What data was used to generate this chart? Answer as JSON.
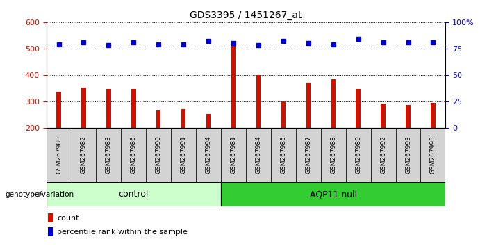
{
  "title": "GDS3395 / 1451267_at",
  "samples": [
    "GSM267980",
    "GSM267982",
    "GSM267983",
    "GSM267986",
    "GSM267990",
    "GSM267991",
    "GSM267994",
    "GSM267981",
    "GSM267984",
    "GSM267985",
    "GSM267987",
    "GSM267988",
    "GSM267989",
    "GSM267992",
    "GSM267993",
    "GSM267995"
  ],
  "counts": [
    338,
    353,
    348,
    348,
    266,
    270,
    252,
    511,
    400,
    300,
    372,
    384,
    348,
    292,
    288,
    295
  ],
  "percentiles": [
    79,
    81,
    78,
    81,
    79,
    79,
    82,
    80,
    78,
    82,
    80,
    79,
    84,
    81,
    81,
    81
  ],
  "groups": [
    "control",
    "control",
    "control",
    "control",
    "control",
    "control",
    "control",
    "AQP11 null",
    "AQP11 null",
    "AQP11 null",
    "AQP11 null",
    "AQP11 null",
    "AQP11 null",
    "AQP11 null",
    "AQP11 null",
    "AQP11 null"
  ],
  "control_color": "#ccffcc",
  "aqp11_color": "#33cc33",
  "bar_color": "#cc1100",
  "dot_color": "#0000cc",
  "ylim_left": [
    200,
    600
  ],
  "ylim_right": [
    0,
    100
  ],
  "yticks_left": [
    200,
    300,
    400,
    500,
    600
  ],
  "yticks_right": [
    0,
    25,
    50,
    75,
    100
  ],
  "ylabel_left_color": "#cc1100",
  "ylabel_right_color": "#0000cc",
  "tick_label_bg": "#d3d3d3",
  "genotype_label": "genotype/variation",
  "control_label": "control",
  "aqp11_label": "AQP11 null",
  "legend_count": "count",
  "legend_percentile": "percentile rank within the sample",
  "plot_bg_color": "#ffffff",
  "fig_bg_color": "#ffffff"
}
